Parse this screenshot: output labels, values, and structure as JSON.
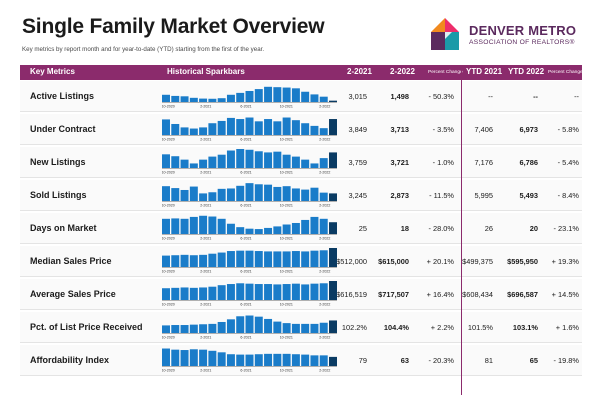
{
  "header": {
    "title": "Single Family Market Overview",
    "subtitle": "Key metrics by report month and for year-to-date (YTD) starting from the first of the year.",
    "logo_line1": "DENVER METRO",
    "logo_line2": "ASSOCIATION OF REALTORS®"
  },
  "colors": {
    "accent": "#8b2b6c",
    "bar": "#1a7cc9",
    "bar_last": "#0a3b63"
  },
  "table": {
    "columns": [
      "Key Metrics",
      "Historical Sparkbars",
      "2-2021",
      "2-2022",
      "Percent Change",
      "YTD 2021",
      "YTD 2022",
      "Percent Change"
    ],
    "spark_ticks": [
      "10-2020",
      "2-2021",
      "6-2021",
      "10-2021",
      "2-2022"
    ],
    "rows": [
      {
        "metric": "Active Listings",
        "v2021": "3,015",
        "v2022": "1,498",
        "pct": "- 50.3%",
        "ytd2021": "--",
        "ytd2022": "--",
        "ytdpct": "--",
        "spark": [
          38,
          32,
          30,
          22,
          18,
          17,
          20,
          38,
          48,
          58,
          68,
          80,
          78,
          76,
          72,
          54,
          40,
          28,
          7
        ]
      },
      {
        "metric": "Under Contract",
        "v2021": "3,849",
        "v2022": "3,713",
        "pct": "- 3.5%",
        "ytd2021": "7,406",
        "ytd2022": "6,973",
        "ytdpct": "- 5.8%",
        "spark": [
          82,
          58,
          40,
          34,
          40,
          62,
          74,
          90,
          84,
          92,
          72,
          84,
          72,
          92,
          78,
          62,
          48,
          36,
          84
        ]
      },
      {
        "metric": "New Listings",
        "v2021": "3,759",
        "v2022": "3,721",
        "pct": "- 1.0%",
        "ytd2021": "7,176",
        "ytd2022": "6,786",
        "ytdpct": "- 5.4%",
        "spark": [
          72,
          62,
          44,
          24,
          44,
          60,
          70,
          92,
          100,
          96,
          88,
          82,
          86,
          70,
          60,
          44,
          24,
          52,
          82
        ]
      },
      {
        "metric": "Sold Listings",
        "v2021": "3,245",
        "v2022": "2,873",
        "pct": "- 11.5%",
        "ytd2021": "5,995",
        "ytd2022": "5,493",
        "ytdpct": "- 8.4%",
        "spark": [
          78,
          68,
          58,
          76,
          40,
          46,
          64,
          66,
          80,
          94,
          88,
          86,
          74,
          78,
          66,
          60,
          70,
          44,
          40
        ]
      },
      {
        "metric": "Days on Market",
        "v2021": "25",
        "v2022": "18",
        "pct": "- 28.0%",
        "ytd2021": "26",
        "ytd2022": "20",
        "ytdpct": "- 23.1%",
        "spark": [
          80,
          82,
          80,
          90,
          96,
          92,
          80,
          54,
          36,
          28,
          26,
          32,
          40,
          50,
          58,
          74,
          90,
          80,
          62
        ]
      },
      {
        "metric": "Median Sales Price",
        "v2021": "$512,000",
        "v2022": "$615,000",
        "pct": "+ 20.1%",
        "ytd2021": "$499,375",
        "ytd2022": "$595,950",
        "ytdpct": "+ 19.3%",
        "spark": [
          60,
          62,
          64,
          62,
          64,
          70,
          76,
          84,
          86,
          86,
          84,
          82,
          82,
          82,
          84,
          82,
          86,
          88,
          100
        ]
      },
      {
        "metric": "Average Sales Price",
        "v2021": "$616,519",
        "v2022": "$717,507",
        "pct": "+ 16.4%",
        "ytd2021": "$608,434",
        "ytd2022": "$696,587",
        "ytdpct": "+ 14.5%",
        "spark": [
          62,
          64,
          66,
          64,
          66,
          70,
          78,
          84,
          88,
          86,
          84,
          84,
          82,
          84,
          86,
          82,
          86,
          88,
          100
        ]
      },
      {
        "metric": "Pct. of List Price Received",
        "v2021": "102.2%",
        "v2022": "104.4%",
        "pct": "+ 2.2%",
        "ytd2021": "101.5%",
        "ytd2022": "103.1%",
        "ytdpct": "+ 1.6%",
        "spark": [
          40,
          42,
          42,
          44,
          46,
          48,
          58,
          72,
          88,
          92,
          86,
          74,
          60,
          52,
          48,
          48,
          48,
          54,
          66
        ]
      },
      {
        "metric": "Affordability Index",
        "v2021": "79",
        "v2022": "63",
        "pct": "- 20.3%",
        "ytd2021": "81",
        "ytd2022": "65",
        "ytdpct": "- 19.8%",
        "spark": [
          92,
          86,
          84,
          88,
          86,
          80,
          72,
          62,
          60,
          60,
          62,
          64,
          64,
          64,
          62,
          60,
          56,
          56,
          48
        ]
      }
    ]
  }
}
